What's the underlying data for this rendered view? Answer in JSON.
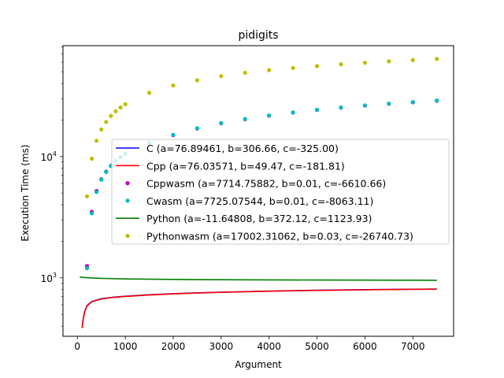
{
  "chart_data": {
    "type": "scatter",
    "title": "pidigits",
    "xlabel": "Argument",
    "ylabel": "Execution Time (ms)",
    "xlim": [
      -300,
      7850
    ],
    "ylim": [
      330,
      82000
    ],
    "yscale": "log",
    "x_ticks": [
      0,
      1000,
      2000,
      3000,
      4000,
      5000,
      6000,
      7000
    ],
    "x_tick_labels": [
      "0",
      "1000",
      "2000",
      "3000",
      "4000",
      "5000",
      "6000",
      "7000"
    ],
    "y_ticks": [
      1000,
      10000
    ],
    "y_tick_base": "10",
    "y_tick_exponents": [
      "3",
      "4"
    ],
    "legend_position": "center-right",
    "grid": false,
    "series": [
      {
        "name": "C (a=76.89461, b=306.66, c=-325.00)",
        "kind": "line",
        "color": "#0000ff",
        "x": [
          100,
          110,
          125,
          150,
          200,
          300,
          500,
          750,
          1000,
          1500,
          2000,
          2500,
          3000,
          4000,
          5000,
          6000,
          7000,
          7500
        ],
        "y": [
          390,
          426,
          468,
          525,
          590,
          638,
          673,
          692,
          705,
          725,
          740,
          752,
          762,
          778,
          790,
          799,
          806,
          809
        ]
      },
      {
        "name": "Cpp (a=76.03571, b=49.47, c=-181.81)",
        "kind": "line",
        "color": "#ff0000",
        "x": [
          100,
          110,
          125,
          150,
          200,
          300,
          500,
          750,
          1000,
          1500,
          2000,
          2500,
          3000,
          4000,
          5000,
          6000,
          7000,
          7500
        ],
        "y": [
          385,
          420,
          462,
          520,
          586,
          635,
          670,
          690,
          703,
          723,
          738,
          750,
          760,
          776,
          788,
          797,
          804,
          807
        ]
      },
      {
        "name": "Cppwasm (a=7714.75882, b=0.01, c=-6610.66)",
        "kind": "scatter",
        "color": "#bf00bf",
        "x": [
          200,
          300,
          400,
          500,
          600,
          700,
          800,
          900,
          1000,
          1500,
          2000,
          2500,
          3000,
          3500,
          4000,
          4500,
          5000,
          5500,
          6000,
          6500,
          7000,
          7500
        ],
        "y": [
          1250,
          3500,
          5200,
          6500,
          7500,
          8400,
          9200,
          9900,
          10500,
          13000,
          15000,
          17000,
          18800,
          20300,
          21700,
          23000,
          24200,
          25300,
          26300,
          27200,
          28000,
          28800
        ]
      },
      {
        "name": "Cwasm (a=7725.07544, b=0.01, c=-8063.11)",
        "kind": "scatter",
        "color": "#00bfbf",
        "x": [
          200,
          300,
          400,
          500,
          600,
          700,
          800,
          900,
          1000,
          1500,
          2000,
          2500,
          3000,
          3500,
          4000,
          4500,
          5000,
          5500,
          6000,
          6500,
          7000,
          7500
        ],
        "y": [
          1200,
          3400,
          5100,
          6450,
          7450,
          8350,
          9150,
          9850,
          10500,
          13000,
          15100,
          17100,
          18900,
          20400,
          21800,
          23100,
          24300,
          25400,
          26400,
          27300,
          28100,
          28900
        ]
      },
      {
        "name": "Python (a=-11.64808, b=372.12, c=1123.93)",
        "kind": "line",
        "color": "#008000",
        "x": [
          50,
          100,
          250,
          500,
          1000,
          2000,
          3000,
          4000,
          5000,
          6000,
          7000,
          7500
        ],
        "y": [
          1020,
          1010,
          1000,
          990,
          980,
          970,
          965,
          962,
          960,
          958,
          956,
          955
        ]
      },
      {
        "name": "Pythonwasm (a=17002.31062, b=0.03, c=-26740.73)",
        "kind": "scatter",
        "color": "#bfbf00",
        "x": [
          200,
          300,
          400,
          500,
          600,
          700,
          800,
          900,
          1000,
          1500,
          2000,
          2500,
          3000,
          3500,
          4000,
          4500,
          5000,
          5500,
          6000,
          6500,
          7000,
          7500
        ],
        "y": [
          4700,
          9600,
          13500,
          16700,
          19300,
          21600,
          23600,
          25400,
          27000,
          33500,
          38500,
          42500,
          46000,
          49000,
          51500,
          53700,
          55700,
          57600,
          59300,
          60900,
          62400,
          63800
        ]
      }
    ]
  }
}
